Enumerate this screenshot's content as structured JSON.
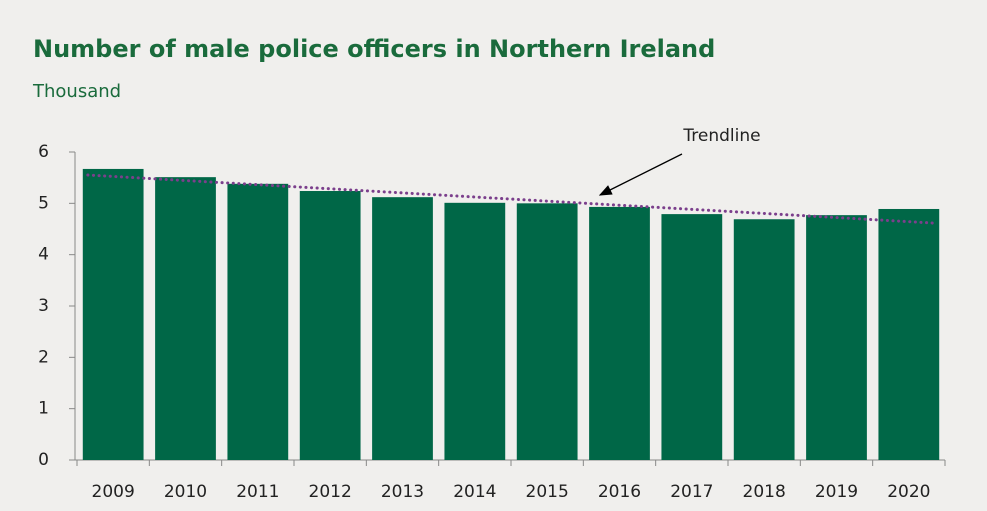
{
  "chart_data": {
    "type": "bar",
    "title": "Number of male police officers in Northern Ireland",
    "subtitle": "Thousand",
    "annotation": "Trendline",
    "categories": [
      "2009",
      "2010",
      "2011",
      "2012",
      "2013",
      "2014",
      "2015",
      "2016",
      "2017",
      "2018",
      "2019",
      "2020"
    ],
    "values": [
      5.67,
      5.51,
      5.38,
      5.24,
      5.12,
      5.01,
      5.0,
      4.93,
      4.79,
      4.69,
      4.77,
      4.89
    ],
    "color": "#006747",
    "trendline": true,
    "trendline_color": "#7b3f8c",
    "ylim": [
      0,
      6
    ],
    "yticks": [
      0,
      1,
      2,
      3,
      4,
      5,
      6
    ],
    "grid": false
  }
}
